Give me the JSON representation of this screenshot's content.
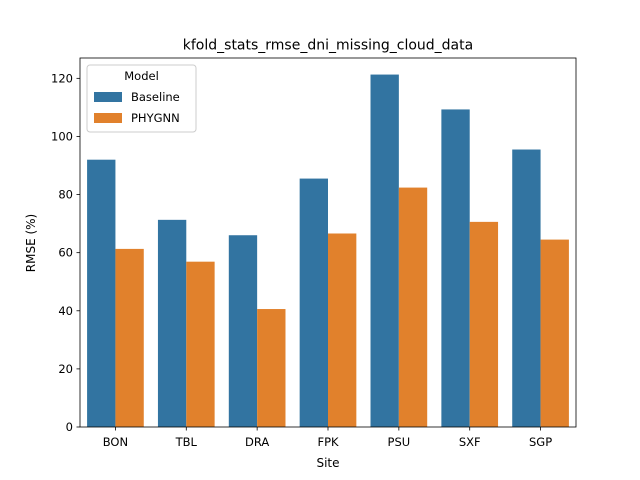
{
  "chart_data": {
    "type": "bar",
    "title": "kfold_stats_rmse_dni_missing_cloud_data",
    "xlabel": "Site",
    "ylabel": "RMSE (%)",
    "categories": [
      "BON",
      "TBL",
      "DRA",
      "FPK",
      "PSU",
      "SXF",
      "SGP"
    ],
    "ylim": [
      0,
      127
    ],
    "yticks": [
      0,
      20,
      40,
      60,
      80,
      100,
      120
    ],
    "grid": false,
    "legend": {
      "title": "Model",
      "placement": "top-left"
    },
    "series": [
      {
        "name": "Baseline",
        "color": "#3274a1",
        "values": [
          92.0,
          71.3,
          66.0,
          85.5,
          121.3,
          109.3,
          95.5
        ]
      },
      {
        "name": "PHYGNN",
        "color": "#e1812c",
        "values": [
          61.3,
          56.9,
          40.6,
          66.6,
          82.4,
          70.6,
          64.5
        ]
      }
    ]
  }
}
